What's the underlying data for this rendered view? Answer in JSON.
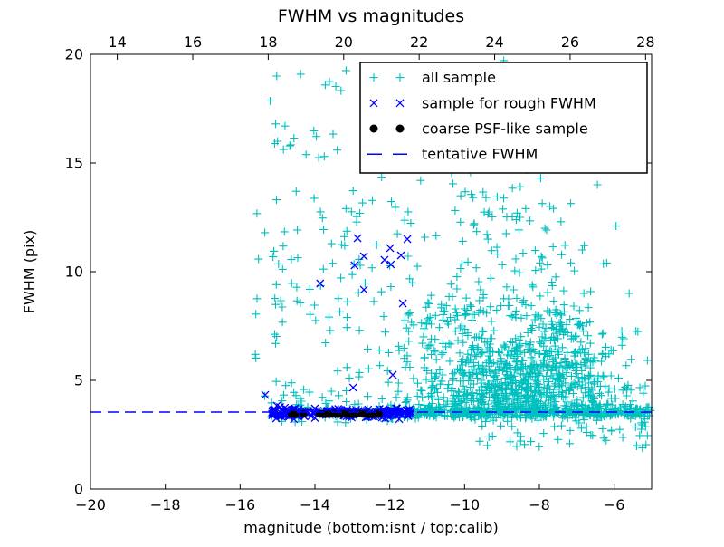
{
  "chart_data": {
    "type": "scatter",
    "title": "FWHM vs magnitudes",
    "xlabel": "magnitude (bottom:isnt / top:calib)",
    "ylabel": "FWHM (pix)",
    "x_axis_bottom": {
      "range": [
        -20,
        -5
      ],
      "ticks": [
        -20,
        -18,
        -16,
        -14,
        -12,
        -10,
        -8,
        -6
      ]
    },
    "x_axis_top": {
      "range": [
        13.29,
        28.16
      ],
      "ticks": [
        14,
        16,
        18,
        20,
        22,
        24,
        26,
        28
      ]
    },
    "y_axis": {
      "range": [
        0,
        20
      ],
      "ticks": [
        0,
        5,
        10,
        15,
        20
      ]
    },
    "tentative_fwhm": 3.54,
    "seed": 7,
    "colors": {
      "all_sample": "#00bfbf",
      "rough_fwhm": "#0000ff",
      "psf_sample": "#000000",
      "tentative_line": "#0000ff"
    },
    "series": [
      {
        "name": "all sample",
        "marker": "plus",
        "color": "#00bfbf",
        "clusters": [
          {
            "count": 900,
            "mag": {
              "dist": "normal",
              "mean": -8.15,
              "sd": 1.3,
              "min": -12.3,
              "max": -5.05
            },
            "fwhm": {
              "dist": "halfnormal",
              "base": 3.45,
              "scale": 2.3,
              "max": 19.5
            }
          },
          {
            "count": 430,
            "mag": {
              "dist": "uniform",
              "min": -11.55,
              "max": -5.02
            },
            "fwhm": {
              "dist": "normal",
              "mean": 3.52,
              "sd": 0.13,
              "min": 3.15,
              "max": 4.0
            }
          },
          {
            "count": 48,
            "mag": {
              "dist": "uniform",
              "min": -9.7,
              "max": -5.05
            },
            "fwhm": {
              "dist": "uniform",
              "min": 1.9,
              "max": 3.35
            }
          },
          {
            "count": 115,
            "mag": {
              "dist": "uniform",
              "min": -15.6,
              "max": -11.45
            },
            "fwhm": {
              "dist": "uniform",
              "min": 3.9,
              "max": 13.5
            }
          },
          {
            "count": 22,
            "mag": {
              "dist": "uniform",
              "min": -15.25,
              "max": -11.6
            },
            "fwhm": {
              "dist": "uniform",
              "min": 13.5,
              "max": 19.3
            }
          },
          {
            "count": 75,
            "mag": {
              "dist": "uniform",
              "min": -15.35,
              "max": -11.45
            },
            "fwhm": {
              "dist": "normal",
              "mean": 3.62,
              "sd": 0.32,
              "min": 3.0,
              "max": 4.8
            }
          },
          {
            "count": 95,
            "mag": {
              "dist": "uniform",
              "min": -11.6,
              "max": -9.4
            },
            "fwhm": {
              "dist": "uniform",
              "min": 3.8,
              "max": 8.5
            }
          },
          {
            "count": 110,
            "mag": {
              "dist": "normal",
              "mean": -9.2,
              "sd": 1.25,
              "min": -11.5,
              "max": -6.0
            },
            "fwhm": {
              "dist": "uniform",
              "min": 8.0,
              "max": 15.5
            }
          },
          {
            "count": 38,
            "mag": {
              "dist": "normal",
              "mean": -8.6,
              "sd": 1.1,
              "min": -11.2,
              "max": -6.2
            },
            "fwhm": {
              "dist": "uniform",
              "min": 15.5,
              "max": 19.8
            }
          }
        ],
        "points": [
          [
            -15.02,
            19.0
          ],
          [
            -15.05,
            16.8
          ],
          [
            -14.8,
            16.7
          ],
          [
            -15.0,
            16.0
          ],
          [
            -10.45,
            19.4
          ],
          [
            -11.0,
            18.6
          ],
          [
            -13.9,
            15.25
          ],
          [
            -13.75,
            15.3
          ],
          [
            -14.5,
            13.7
          ],
          [
            -6.45,
            14.0
          ],
          [
            -5.95,
            12.1
          ],
          [
            -6.2,
            10.4
          ],
          [
            -5.6,
            9.0
          ],
          [
            -6.8,
            11.2
          ],
          [
            -9.35,
            2.4
          ],
          [
            -5.4,
            2.0
          ],
          [
            -5.25,
            1.9
          ]
        ]
      },
      {
        "name": "sample for rough FWHM",
        "marker": "x",
        "color": "#0000ff",
        "clusters": [
          {
            "count": 230,
            "mag": {
              "dist": "uniform",
              "min": -15.15,
              "max": -11.42
            },
            "fwhm": {
              "dist": "normal",
              "mean": 3.5,
              "sd": 0.11,
              "min": 3.2,
              "max": 3.9
            }
          }
        ],
        "points": [
          [
            -12.86,
            11.54
          ],
          [
            -11.53,
            11.5
          ],
          [
            -11.99,
            11.08
          ],
          [
            -12.69,
            10.71
          ],
          [
            -11.7,
            10.75
          ],
          [
            -12.14,
            10.54
          ],
          [
            -11.97,
            10.33
          ],
          [
            -12.94,
            10.29
          ],
          [
            -13.86,
            9.46
          ],
          [
            -12.69,
            9.17
          ],
          [
            -11.65,
            8.54
          ],
          [
            -11.92,
            5.25
          ],
          [
            -12.98,
            4.67
          ],
          [
            -15.33,
            4.33
          ]
        ]
      },
      {
        "name": "coarse PSF-like sample",
        "marker": "dot",
        "color": "#000000",
        "clusters": [],
        "points": [
          [
            -14.63,
            3.45
          ],
          [
            -14.52,
            3.43
          ],
          [
            -14.3,
            3.46
          ],
          [
            -13.88,
            3.44
          ],
          [
            -13.8,
            3.47
          ],
          [
            -13.72,
            3.43
          ],
          [
            -13.63,
            3.46
          ],
          [
            -13.55,
            3.44
          ],
          [
            -13.47,
            3.47
          ],
          [
            -13.38,
            3.43
          ],
          [
            -13.3,
            3.45
          ],
          [
            -13.22,
            3.47
          ],
          [
            -13.13,
            3.44
          ],
          [
            -13.05,
            3.46
          ],
          [
            -12.97,
            3.43
          ],
          [
            -12.88,
            3.45
          ],
          [
            -12.8,
            3.47
          ],
          [
            -12.72,
            3.44
          ],
          [
            -12.63,
            3.46
          ],
          [
            -12.55,
            3.43
          ],
          [
            -12.47,
            3.45
          ],
          [
            -12.4,
            3.44
          ],
          [
            -12.33,
            3.46
          ],
          [
            -12.28,
            3.45
          ]
        ]
      },
      {
        "name": "tentative FWHM",
        "marker": "dashed-line",
        "color": "#0000ff",
        "y": 3.54
      }
    ]
  }
}
